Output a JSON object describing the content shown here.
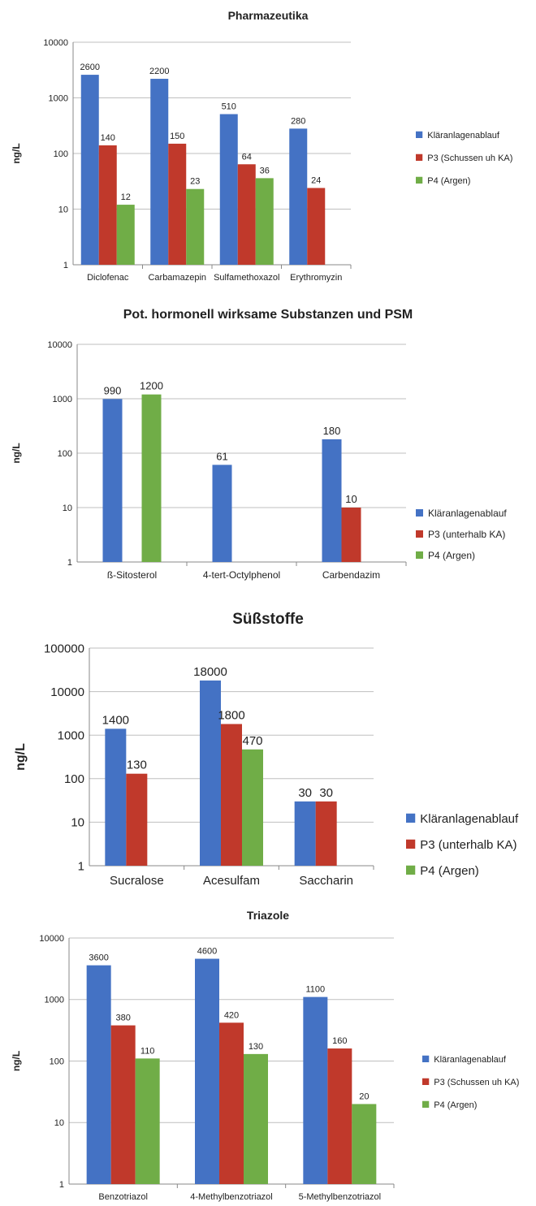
{
  "chart_data": [
    {
      "type": "bar",
      "title": "Pharmazeutika",
      "ylabel": "ng/L",
      "yscale": "log",
      "ylim": [
        1,
        10000
      ],
      "yticks": [
        "1",
        "10",
        "100",
        "1000",
        "10000"
      ],
      "categories": [
        "Diclofenac",
        "Carbamazepin",
        "Sulfamethoxazol",
        "Erythromyzin"
      ],
      "series": [
        {
          "name": "Kläranlagenablauf",
          "values": [
            2600,
            2200,
            510,
            280
          ]
        },
        {
          "name": "P3 (Schussen uh KA)",
          "values": [
            140,
            150,
            64,
            24
          ]
        },
        {
          "name": "P4 (Argen)",
          "values": [
            12,
            23,
            36,
            null
          ]
        }
      ],
      "data_labels": [
        [
          "2600",
          "2200",
          "510",
          "280"
        ],
        [
          "140",
          "150",
          "64",
          "24"
        ],
        [
          "12",
          "23",
          "36",
          ""
        ]
      ],
      "legend": "right",
      "grid": true
    },
    {
      "type": "bar",
      "title": "Pot. hormonell wirksame Substanzen und PSM",
      "ylabel": "ng/L",
      "yscale": "log",
      "ylim": [
        1,
        10000
      ],
      "yticks": [
        "1",
        "10",
        "100",
        "1000",
        "10000"
      ],
      "categories": [
        "ß-Sitosterol",
        "4-tert-Octylphenol",
        "Carbendazim"
      ],
      "series": [
        {
          "name": "Kläranlagenablauf",
          "values": [
            990,
            61,
            180
          ]
        },
        {
          "name": "P3 (unterhalb KA)",
          "values": [
            null,
            null,
            10
          ]
        },
        {
          "name": "P4 (Argen)",
          "values": [
            1200,
            null,
            null
          ]
        }
      ],
      "data_labels": [
        [
          "990",
          "61",
          "180"
        ],
        [
          "",
          "",
          "10"
        ],
        [
          "1200",
          "",
          ""
        ]
      ],
      "legend": "right",
      "grid": true
    },
    {
      "type": "bar",
      "title": "Süßstoffe",
      "ylabel": "ng/L",
      "yscale": "log",
      "ylim": [
        1,
        100000
      ],
      "yticks": [
        "1",
        "10",
        "100",
        "1000",
        "10000",
        "100000"
      ],
      "categories": [
        "Sucralose",
        "Acesulfam",
        "Saccharin"
      ],
      "series": [
        {
          "name": "Kläranlagenablauf",
          "values": [
            1400,
            18000,
            30
          ]
        },
        {
          "name": "P3 (unterhalb KA)",
          "values": [
            130,
            1800,
            30
          ]
        },
        {
          "name": "P4 (Argen)",
          "values": [
            null,
            470,
            null
          ]
        }
      ],
      "data_labels": [
        [
          "1400",
          "18000",
          "30"
        ],
        [
          "130",
          "1800",
          "30"
        ],
        [
          "",
          "470",
          ""
        ]
      ],
      "legend": "right",
      "grid": true
    },
    {
      "type": "bar",
      "title": "Triazole",
      "ylabel": "ng/L",
      "yscale": "log",
      "ylim": [
        1,
        10000
      ],
      "yticks": [
        "1",
        "10",
        "100",
        "1000",
        "10000"
      ],
      "categories": [
        "Benzotriazol",
        "4-Methylbenzotriazol",
        "5-Methylbenzotriazol"
      ],
      "series": [
        {
          "name": "Kläranlagenablauf",
          "values": [
            3600,
            4600,
            1100
          ]
        },
        {
          "name": "P3 (Schussen uh KA)",
          "values": [
            380,
            420,
            160
          ]
        },
        {
          "name": "P4 (Argen)",
          "values": [
            110,
            130,
            20
          ]
        }
      ],
      "data_labels": [
        [
          "3600",
          "4600",
          "1100"
        ],
        [
          "380",
          "420",
          "160"
        ],
        [
          "110",
          "130",
          "20"
        ]
      ],
      "legend": "right",
      "grid": true
    }
  ],
  "colors": {
    "series": [
      "#4472c4",
      "#c0392b",
      "#70ad47"
    ],
    "grid": "#bfbfbf",
    "axis": "#888888"
  }
}
